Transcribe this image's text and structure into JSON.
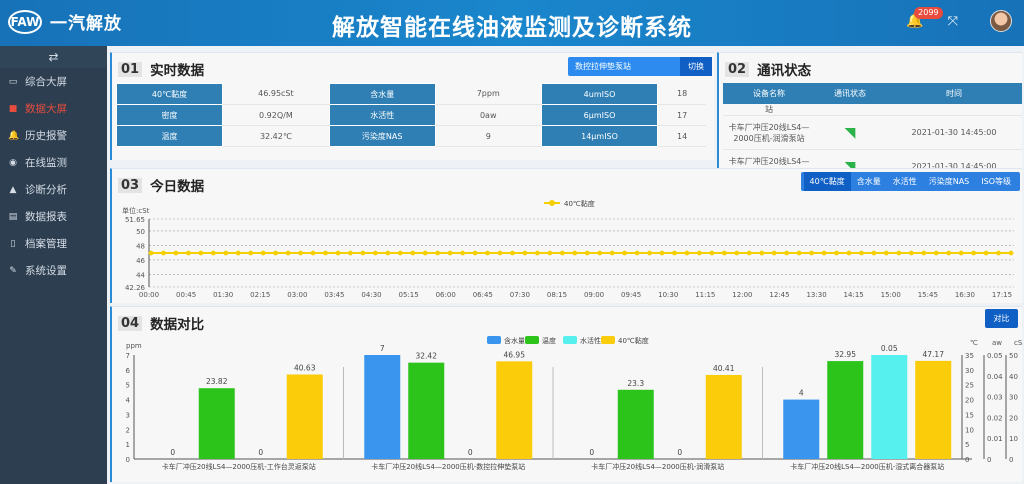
{
  "header": {
    "logo_text": "一汽解放",
    "logo_mark": "FAW",
    "title": "解放智能在线油液监测及诊断系统",
    "notification_count": "2099"
  },
  "sidebar": {
    "toggle_icon": "⇄",
    "items": [
      {
        "label": "综合大屏",
        "icon": "monitor-icon",
        "glyph": "▭",
        "active": false
      },
      {
        "label": "数据大屏",
        "icon": "grid-icon",
        "glyph": "■",
        "active": true
      },
      {
        "label": "历史报警",
        "icon": "bell-icon",
        "glyph": "🔔",
        "active": false
      },
      {
        "label": "在线监测",
        "icon": "eye-icon",
        "glyph": "◉",
        "active": false
      },
      {
        "label": "诊断分析",
        "icon": "flask-icon",
        "glyph": "▲",
        "active": false
      },
      {
        "label": "数据报表",
        "icon": "file-icon",
        "glyph": "▤",
        "active": false
      },
      {
        "label": "档案管理",
        "icon": "archive-icon",
        "glyph": "▯",
        "active": false
      },
      {
        "label": "系统设置",
        "icon": "wrench-icon",
        "glyph": "✎",
        "active": false
      }
    ]
  },
  "realtime": {
    "num": "01",
    "title": "实时数据",
    "station": "数控拉伸垫泵站",
    "switch_label": "切换",
    "rows": [
      [
        {
          "label": "40℃黏度",
          "value": "46.95cSt"
        },
        {
          "label": "含水量",
          "value": "7ppm"
        },
        {
          "label": "4umISO",
          "value": "18"
        }
      ],
      [
        {
          "label": "密度",
          "value": "0.92Q/M"
        },
        {
          "label": "水活性",
          "value": "0aw"
        },
        {
          "label": "6μmISO",
          "value": "17"
        }
      ],
      [
        {
          "label": "温度",
          "value": "32.42℃"
        },
        {
          "label": "污染度NAS",
          "value": "9"
        },
        {
          "label": "14μmISO",
          "value": "14"
        }
      ]
    ]
  },
  "comm": {
    "num": "02",
    "title": "通讯状态",
    "headers": [
      "设备名称",
      "通讯状态",
      "时间"
    ],
    "partial_top": "站",
    "rows": [
      {
        "name": "卡车厂冲压20线LS4—2000压机-润滑泵站",
        "status": "online",
        "time": "2021-01-30 14:45:00"
      },
      {
        "name": "卡车厂冲压20线LS4—2000压机-润滑泵站",
        "status": "online",
        "time": "2021-01-30 14:45:00"
      }
    ]
  },
  "today": {
    "num": "03",
    "title": "今日数据",
    "tabs": [
      "40℃黏度",
      "含水量",
      "水活性",
      "污染度NAS",
      "ISO等级"
    ],
    "active_tab": 0
  },
  "compare": {
    "num": "04",
    "title": "数据对比",
    "button": "对比"
  },
  "chart_data": [
    {
      "type": "line",
      "title": "今日数据",
      "ylabel": "单位:cSt",
      "legend": [
        "40℃黏度"
      ],
      "ylim": [
        42.26,
        51.65
      ],
      "yticks": [
        42.26,
        44,
        46,
        48,
        50,
        51.65
      ],
      "grid": true,
      "x_tick_labels": [
        "00:00",
        "00:45",
        "01:30",
        "02:15",
        "03:00",
        "03:45",
        "04:30",
        "05:15",
        "06:00",
        "06:45",
        "07:30",
        "08:15",
        "09:00",
        "09:45",
        "10:30",
        "11:15",
        "12:00",
        "12:45",
        "13:30",
        "14:15",
        "15:00",
        "15:45",
        "16:30",
        "17:15"
      ],
      "series": [
        {
          "name": "40℃黏度",
          "color": "#f5d000",
          "constant_value": 46.95,
          "points": 70
        }
      ]
    },
    {
      "type": "bar",
      "title": "数据对比",
      "legend": [
        "含水量",
        "温度",
        "水活性",
        "40℃黏度"
      ],
      "colors": [
        "#3a95ef",
        "#2cc41b",
        "#56f0ee",
        "#fbcc0a"
      ],
      "axes": [
        {
          "unit": "ppm",
          "range": [
            0,
            7
          ],
          "ticks": [
            0,
            1,
            2,
            3,
            4,
            5,
            6,
            7
          ],
          "side": "left"
        },
        {
          "unit": "℃",
          "range": [
            0,
            35
          ],
          "ticks": [
            0,
            5,
            10,
            15,
            20,
            25,
            30,
            35
          ],
          "side": "right"
        },
        {
          "unit": "aw",
          "range": [
            0,
            0.05
          ],
          "ticks": [
            0,
            0.01,
            0.02,
            0.03,
            0.04,
            0.05
          ],
          "side": "right"
        },
        {
          "unit": "cSt",
          "range": [
            0,
            50
          ],
          "ticks": [
            0,
            10,
            20,
            30,
            40,
            50
          ],
          "side": "right"
        }
      ],
      "categories": [
        "卡车厂冲压20线LS4—2000压机-工作台灵返泵站",
        "卡车厂冲压20线LS4—2000压机-数控拉伸垫泵站",
        "卡车厂冲压20线LS4—2000压机-润滑泵站",
        "卡车厂冲压20线LS4—2000压机-湿式离合器泵站"
      ],
      "series": [
        {
          "name": "含水量",
          "values": [
            0,
            7,
            0,
            4
          ]
        },
        {
          "name": "温度",
          "values": [
            23.82,
            32.42,
            23.3,
            32.95
          ]
        },
        {
          "name": "水活性",
          "values": [
            0,
            0,
            0,
            0.05
          ]
        },
        {
          "name": "40℃黏度",
          "values": [
            40.63,
            46.95,
            40.41,
            47.17
          ]
        }
      ]
    }
  ]
}
